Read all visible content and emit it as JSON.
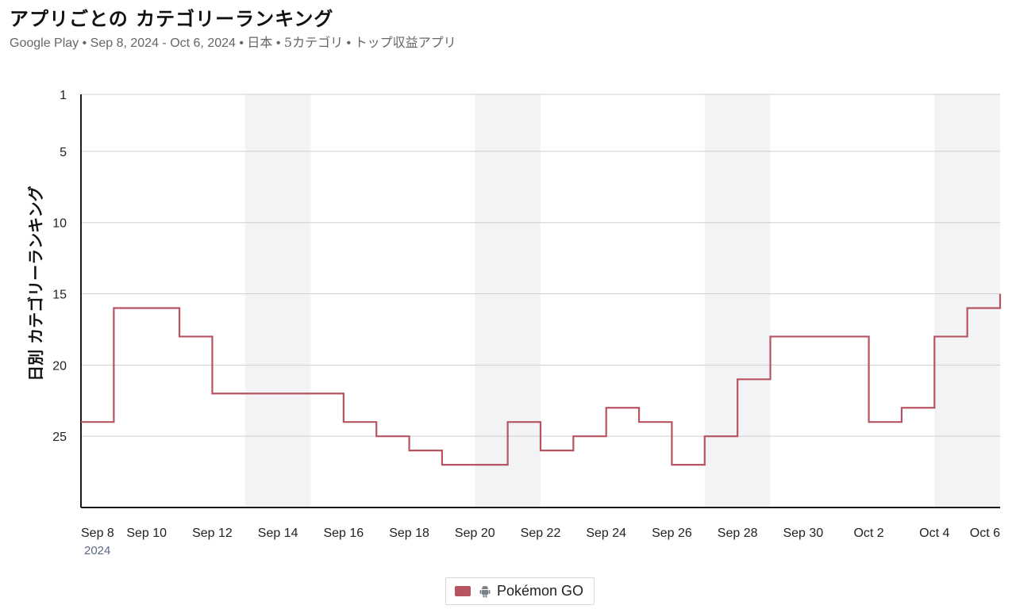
{
  "header": {
    "title": "アプリごとの カテゴリーランキング",
    "subtitle_store": "Google Play",
    "subtitle_dates": "Sep 8, 2024 - Oct 6, 2024",
    "subtitle_country": "日本",
    "subtitle_category": "5カテゴリ",
    "subtitle_list": "トップ収益アプリ",
    "separator": " • "
  },
  "legend": {
    "label": "Pokémon GO",
    "icon": "android-icon"
  },
  "colors": {
    "series": "#b85460",
    "weekend_band": "#f1f3f5",
    "grid": "#cfcfcf",
    "axis": "#1a1a1a"
  },
  "chart_data": {
    "type": "line",
    "step": true,
    "title": "アプリごとの カテゴリーランキング",
    "ylabel": "日別 カテゴリーランキング",
    "xlabel": "",
    "y_inverted": true,
    "ylim": [
      1,
      30
    ],
    "y_ticks": [
      1,
      5,
      10,
      15,
      20,
      25
    ],
    "x_ticks": [
      {
        "date": "2024-09-08",
        "label": "Sep 8",
        "sublabel": "2024"
      },
      {
        "date": "2024-09-10",
        "label": "Sep 10"
      },
      {
        "date": "2024-09-12",
        "label": "Sep 12"
      },
      {
        "date": "2024-09-14",
        "label": "Sep 14"
      },
      {
        "date": "2024-09-16",
        "label": "Sep 16"
      },
      {
        "date": "2024-09-18",
        "label": "Sep 18"
      },
      {
        "date": "2024-09-20",
        "label": "Sep 20"
      },
      {
        "date": "2024-09-22",
        "label": "Sep 22"
      },
      {
        "date": "2024-09-24",
        "label": "Sep 24"
      },
      {
        "date": "2024-09-26",
        "label": "Sep 26"
      },
      {
        "date": "2024-09-28",
        "label": "Sep 28"
      },
      {
        "date": "2024-09-30",
        "label": "Sep 30"
      },
      {
        "date": "2024-10-02",
        "label": "Oct 2"
      },
      {
        "date": "2024-10-04",
        "label": "Oct 4"
      },
      {
        "date": "2024-10-06",
        "label": "Oct 6"
      }
    ],
    "weekend_bands": [
      [
        "2024-09-13",
        "2024-09-15"
      ],
      [
        "2024-09-20",
        "2024-09-22"
      ],
      [
        "2024-09-27",
        "2024-09-29"
      ],
      [
        "2024-10-04",
        "2024-10-06"
      ]
    ],
    "x_start": "2024-09-08",
    "x_end": "2024-10-06",
    "grid": true,
    "legend_position": "bottom-center",
    "series": [
      {
        "name": "Pokémon GO",
        "color": "#b85460",
        "points": [
          {
            "date": "2024-09-08",
            "rank": 24
          },
          {
            "date": "2024-09-09",
            "rank": 16
          },
          {
            "date": "2024-09-10",
            "rank": 16
          },
          {
            "date": "2024-09-11",
            "rank": 18
          },
          {
            "date": "2024-09-12",
            "rank": 22
          },
          {
            "date": "2024-09-13",
            "rank": 22
          },
          {
            "date": "2024-09-14",
            "rank": 22
          },
          {
            "date": "2024-09-15",
            "rank": 22
          },
          {
            "date": "2024-09-16",
            "rank": 24
          },
          {
            "date": "2024-09-17",
            "rank": 25
          },
          {
            "date": "2024-09-18",
            "rank": 26
          },
          {
            "date": "2024-09-19",
            "rank": 27
          },
          {
            "date": "2024-09-20",
            "rank": 27
          },
          {
            "date": "2024-09-21",
            "rank": 24
          },
          {
            "date": "2024-09-22",
            "rank": 26
          },
          {
            "date": "2024-09-23",
            "rank": 25
          },
          {
            "date": "2024-09-24",
            "rank": 23
          },
          {
            "date": "2024-09-25",
            "rank": 24
          },
          {
            "date": "2024-09-26",
            "rank": 27
          },
          {
            "date": "2024-09-27",
            "rank": 25
          },
          {
            "date": "2024-09-28",
            "rank": 21
          },
          {
            "date": "2024-09-29",
            "rank": 18
          },
          {
            "date": "2024-09-30",
            "rank": 18
          },
          {
            "date": "2024-10-01",
            "rank": 18
          },
          {
            "date": "2024-10-02",
            "rank": 24
          },
          {
            "date": "2024-10-03",
            "rank": 23
          },
          {
            "date": "2024-10-04",
            "rank": 18
          },
          {
            "date": "2024-10-05",
            "rank": 16
          },
          {
            "date": "2024-10-06",
            "rank": 15
          }
        ]
      }
    ]
  }
}
